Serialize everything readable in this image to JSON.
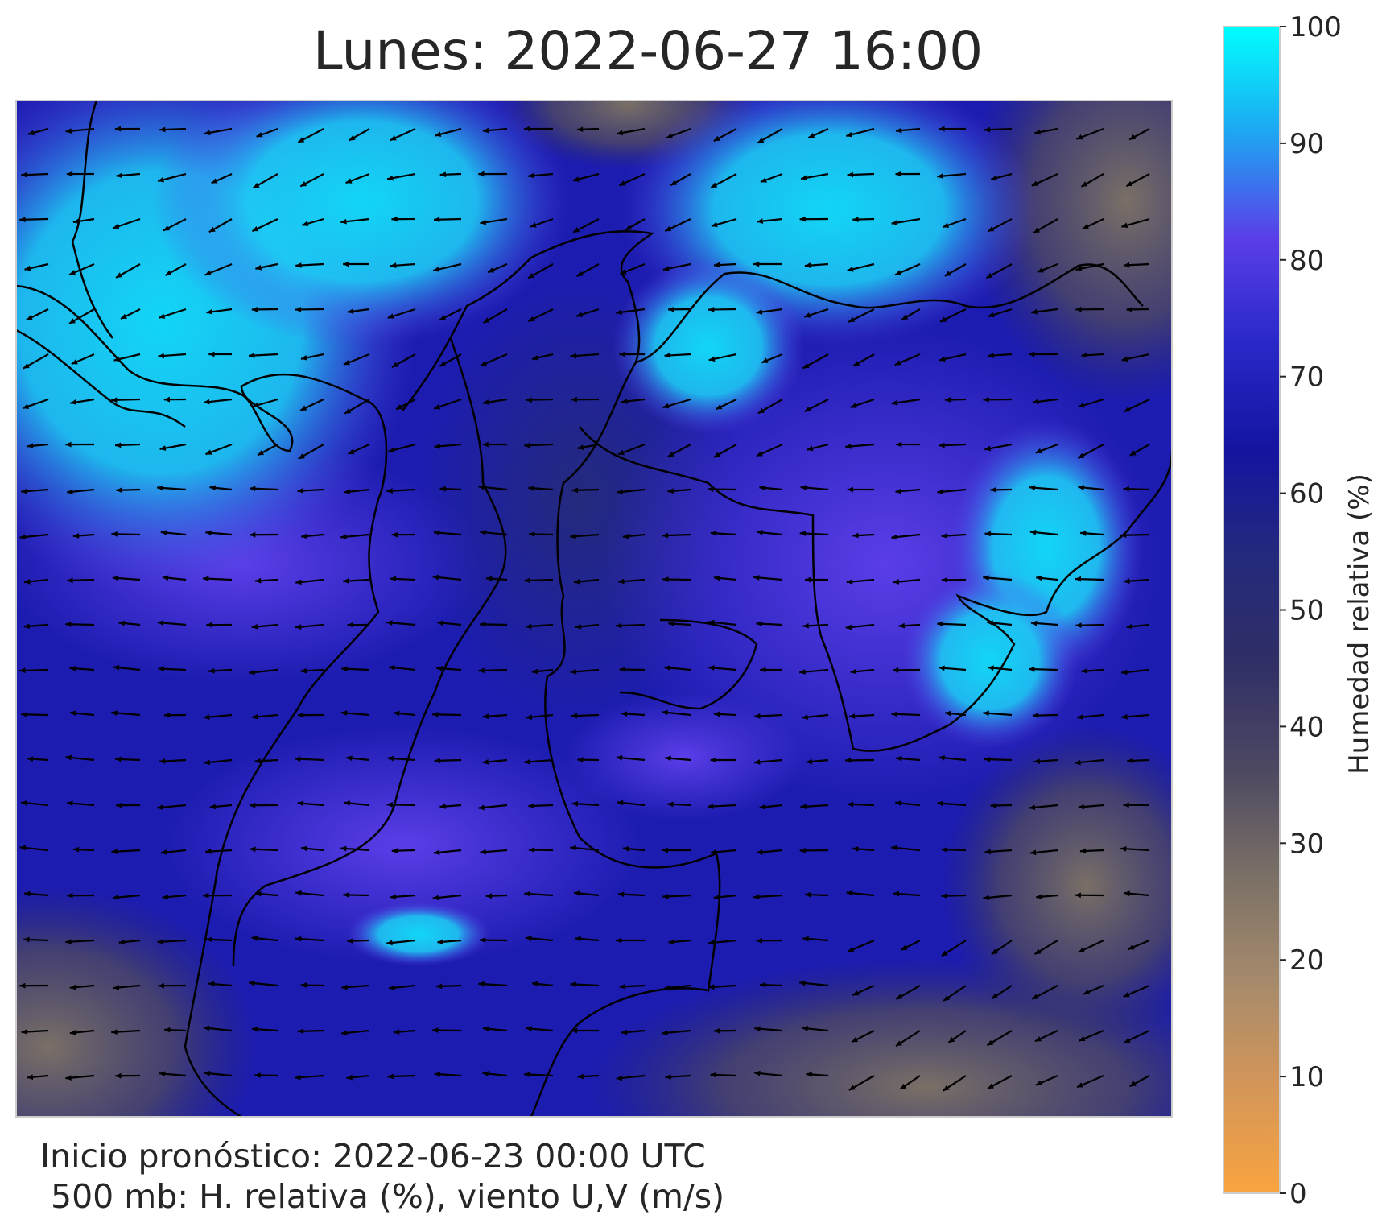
{
  "title": "Lunes: 2022-06-27 16:00",
  "colorbar": {
    "label": "Humedad relativa (%)",
    "range": [
      0,
      100
    ],
    "ticks": [
      0,
      10,
      20,
      30,
      40,
      50,
      60,
      70,
      80,
      90,
      100
    ],
    "colors": [
      "#f9a43f",
      "#d49658",
      "#a68a6c",
      "#7a7066",
      "#4d4862",
      "#302f66",
      "#242a7c",
      "#1414a0",
      "#2828c8",
      "#5a3ee8",
      "#1ea6f2",
      "#00ffff"
    ]
  },
  "footer": [
    "Inicio pronóstico: 2022-06-23 00:00 UTC",
    "500 mb: H. relativa (%), viento U,V (m/s)"
  ]
}
